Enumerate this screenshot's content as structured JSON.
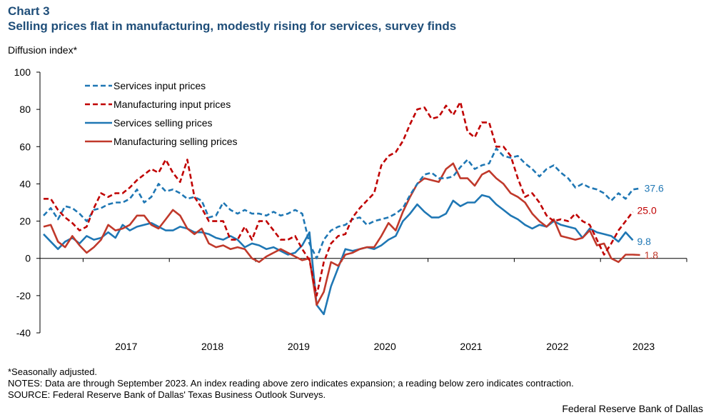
{
  "chart_label": "Chart 3",
  "title": "Selling prices flat in manufacturing, modestly rising for services, survey finds",
  "notes": {
    "seasonal": "*Seasonally adjusted.",
    "notes": "NOTES: Data are through September 2023. An index reading above zero indicates expansion; a reading below zero indicates contraction.",
    "source": "SOURCE: Federal Reserve Bank of Dallas' Texas Business Outlook Surveys."
  },
  "credit": "Federal Reserve Bank of Dallas",
  "chart_data": {
    "type": "line",
    "ylabel": "Diffusion index*",
    "ylim": [
      -40,
      100
    ],
    "yticks": [
      -40,
      -20,
      0,
      20,
      40,
      60,
      80,
      100
    ],
    "x_start": "2016-07",
    "x_end": "2023-09",
    "xtick_labels": [
      "2017",
      "2018",
      "2019",
      "2020",
      "2021",
      "2022",
      "2023"
    ],
    "legend_position": "top-left",
    "grid": false,
    "series": [
      {
        "name": "Services input prices",
        "color": "#1f77b4",
        "dash": true,
        "end_label": "37.6",
        "values": [
          23,
          27,
          21,
          28,
          27,
          24,
          20,
          26,
          27,
          29,
          30,
          30,
          32,
          37,
          30,
          33,
          40,
          36,
          37,
          35,
          32,
          33,
          31,
          22,
          23,
          30,
          26,
          24,
          26,
          24,
          24,
          23,
          25,
          23,
          24,
          26,
          24,
          8,
          0,
          10,
          15,
          17,
          18,
          21,
          22,
          18,
          20,
          21,
          22,
          24,
          27,
          34,
          40,
          45,
          46,
          43,
          43,
          44,
          49,
          53,
          48,
          50,
          51,
          59,
          55,
          54,
          55,
          51,
          48,
          44,
          48,
          50,
          46,
          43,
          38,
          40,
          38,
          37,
          35,
          31,
          35,
          32,
          37,
          37.6
        ]
      },
      {
        "name": "Manufacturing input prices",
        "color": "#c00000",
        "dash": true,
        "end_label": "25.0",
        "values": [
          32,
          32,
          26,
          22,
          19,
          15,
          17,
          27,
          35,
          33,
          35,
          35,
          38,
          42,
          45,
          48,
          46,
          53,
          46,
          41,
          53,
          33,
          27,
          20,
          20,
          20,
          10,
          10,
          17,
          10,
          20,
          20,
          15,
          10,
          10,
          12,
          5,
          -1,
          -20,
          -2,
          8,
          12,
          13,
          22,
          27,
          31,
          35,
          50,
          55,
          57,
          63,
          72,
          80,
          81,
          75,
          76,
          82,
          77,
          84,
          68,
          65,
          73,
          73,
          60,
          60,
          55,
          43,
          33,
          35,
          30,
          23,
          20,
          21,
          20,
          24,
          20,
          18,
          10,
          2,
          8,
          15,
          20,
          25.0
        ]
      },
      {
        "name": "Services selling prices",
        "color": "#1f77b4",
        "dash": false,
        "end_label": "9.8",
        "values": [
          13,
          9,
          5,
          9,
          11,
          8,
          12,
          10,
          11,
          14,
          11,
          18,
          15,
          17,
          18,
          19,
          17,
          15,
          15,
          17,
          16,
          14,
          14,
          13,
          11,
          10,
          12,
          10,
          6,
          8,
          7,
          5,
          6,
          4,
          2,
          3,
          7,
          14,
          -25,
          -30,
          -15,
          -5,
          5,
          4,
          5,
          6,
          5,
          7,
          10,
          12,
          20,
          24,
          29,
          25,
          22,
          22,
          24,
          31,
          28,
          30,
          30,
          34,
          33,
          29,
          26,
          23,
          21,
          18,
          16,
          18,
          17,
          20,
          18,
          17,
          16,
          11,
          16,
          14,
          13,
          12,
          9,
          14,
          9.8
        ]
      },
      {
        "name": "Manufacturing selling prices",
        "color": "#c0392b",
        "dash": false,
        "end_label": "1.8",
        "values": [
          17,
          18,
          9,
          6,
          12,
          7,
          3,
          6,
          10,
          18,
          15,
          16,
          18,
          23,
          23,
          18,
          16,
          21,
          26,
          23,
          16,
          13,
          16,
          8,
          6,
          7,
          5,
          6,
          5,
          0,
          -2,
          1,
          3,
          5,
          3,
          1,
          -1,
          0,
          -25,
          -18,
          -2,
          -4,
          2,
          3,
          5,
          6,
          6,
          12,
          19,
          15,
          25,
          33,
          40,
          43,
          42,
          41,
          48,
          51,
          43,
          43,
          39,
          45,
          47,
          43,
          40,
          35,
          33,
          30,
          24,
          20,
          17,
          21,
          12,
          11,
          10,
          11,
          15,
          7,
          8,
          0,
          -2,
          2,
          2,
          1.8
        ]
      }
    ]
  }
}
